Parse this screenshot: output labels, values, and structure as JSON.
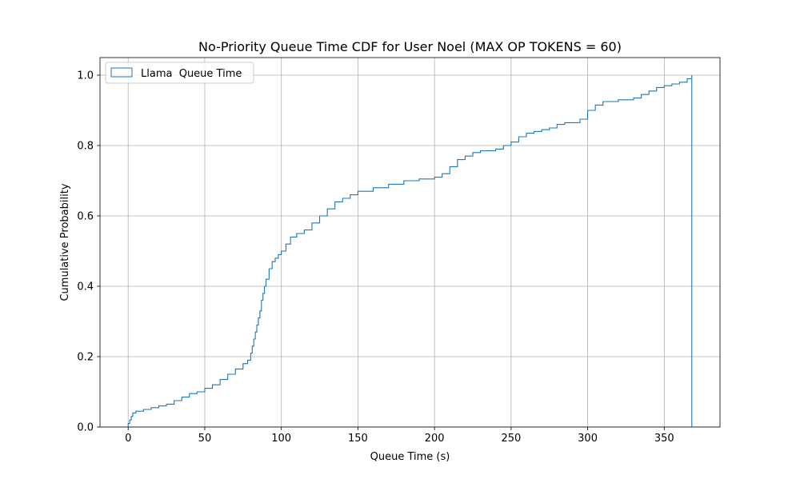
{
  "chart_data": {
    "type": "line",
    "title": "No-Priority Queue Time CDF for User Noel (MAX OP TOKENS = 60)",
    "xlabel": "Queue Time (s)",
    "ylabel": "Cumulative Probability",
    "xlim": [
      -18.4,
      386.4
    ],
    "ylim": [
      0,
      1.05
    ],
    "x_ticks": [
      0,
      50,
      100,
      150,
      200,
      250,
      300,
      350
    ],
    "x_tick_labels": [
      "0",
      "50",
      "100",
      "150",
      "200",
      "250",
      "300",
      "350"
    ],
    "y_ticks": [
      0,
      0.2,
      0.4,
      0.6,
      0.8,
      1.0
    ],
    "y_tick_labels": [
      "0.0",
      "0.2",
      "0.4",
      "0.6",
      "0.8",
      "1.0"
    ],
    "grid": true,
    "legend_position": "top-left",
    "series": [
      {
        "name": "Llama  Queue Time",
        "color": "#1f77b4",
        "style": "step",
        "x": [
          0,
          1,
          2,
          3,
          5,
          10,
          15,
          20,
          25,
          30,
          35,
          40,
          45,
          50,
          55,
          60,
          65,
          70,
          75,
          78,
          80,
          81,
          82,
          83,
          84,
          85,
          86,
          87,
          88,
          89,
          90,
          92,
          94,
          96,
          98,
          100,
          103,
          106,
          110,
          115,
          120,
          125,
          130,
          135,
          140,
          145,
          150,
          160,
          170,
          180,
          190,
          200,
          205,
          210,
          215,
          220,
          225,
          230,
          240,
          245,
          250,
          255,
          260,
          265,
          270,
          275,
          280,
          285,
          290,
          295,
          300,
          305,
          310,
          320,
          330,
          335,
          340,
          345,
          350,
          355,
          360,
          365,
          368
        ],
        "y": [
          0.01,
          0.02,
          0.03,
          0.04,
          0.045,
          0.05,
          0.055,
          0.06,
          0.065,
          0.075,
          0.085,
          0.095,
          0.1,
          0.11,
          0.12,
          0.135,
          0.15,
          0.165,
          0.18,
          0.19,
          0.21,
          0.23,
          0.25,
          0.27,
          0.29,
          0.31,
          0.33,
          0.36,
          0.38,
          0.4,
          0.42,
          0.45,
          0.47,
          0.48,
          0.49,
          0.5,
          0.52,
          0.54,
          0.55,
          0.56,
          0.58,
          0.6,
          0.62,
          0.64,
          0.65,
          0.66,
          0.67,
          0.68,
          0.69,
          0.7,
          0.705,
          0.71,
          0.72,
          0.74,
          0.76,
          0.77,
          0.78,
          0.785,
          0.79,
          0.8,
          0.81,
          0.825,
          0.835,
          0.84,
          0.845,
          0.85,
          0.86,
          0.865,
          0.865,
          0.875,
          0.9,
          0.915,
          0.925,
          0.93,
          0.935,
          0.945,
          0.955,
          0.965,
          0.97,
          0.975,
          0.98,
          0.99,
          1.0
        ]
      }
    ]
  }
}
